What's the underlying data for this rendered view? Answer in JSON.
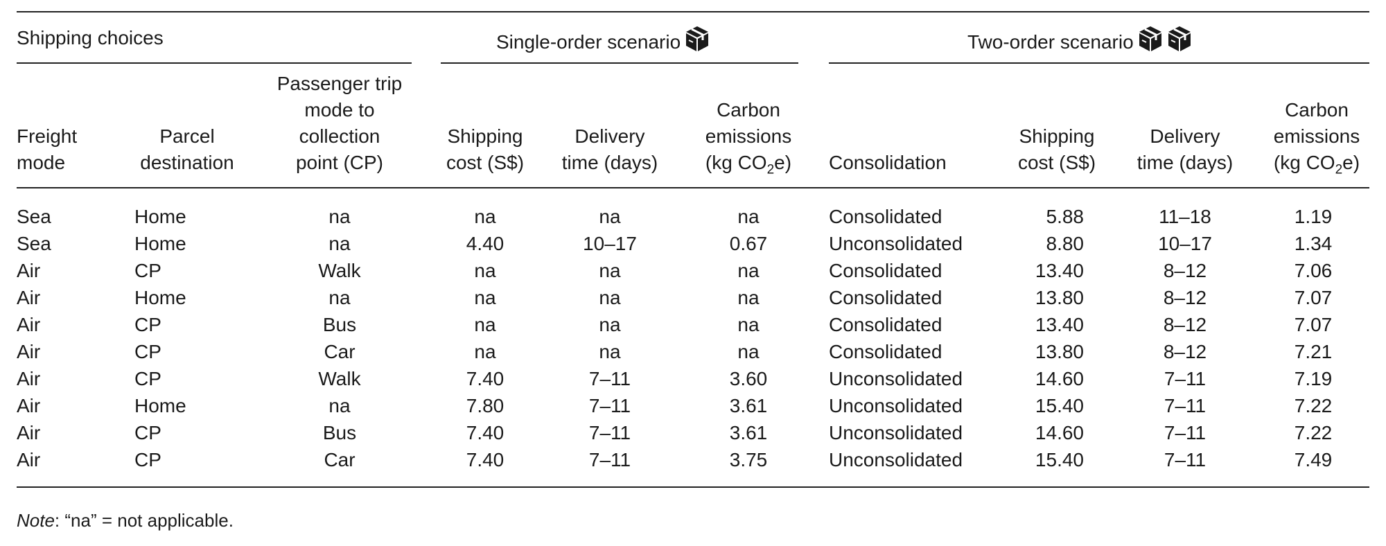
{
  "group_headers": {
    "shipping_choices": "Shipping choices",
    "single_order": "Single-order scenario",
    "two_order": "Two-order scenario"
  },
  "icons": {
    "single_order": [
      "package-icon"
    ],
    "two_order": [
      "package-icon",
      "package-icon"
    ]
  },
  "columns": {
    "freight_mode": [
      "Freight",
      "mode"
    ],
    "parcel_destination": [
      "Parcel",
      "destination"
    ],
    "passenger_trip": [
      "Passenger trip",
      "mode to",
      "collection",
      "point (CP)"
    ],
    "single_shipping_cost": [
      "Shipping",
      "cost (S$)"
    ],
    "single_delivery_time": [
      "Delivery",
      "time (days)"
    ],
    "single_carbon": [
      "Carbon",
      "emissions",
      "(kg CO",
      "2",
      "e)"
    ],
    "consolidation": "Consolidation",
    "two_shipping_cost": [
      "Shipping",
      "cost (S$)"
    ],
    "two_delivery_time": [
      "Delivery",
      "time (days)"
    ],
    "two_carbon": [
      "Carbon",
      "emissions",
      "(kg CO",
      "2",
      "e)"
    ]
  },
  "rows": [
    [
      "Sea",
      "Home",
      "na",
      "na",
      "na",
      "na",
      "Consolidated",
      "5.88",
      "11–18",
      "1.19"
    ],
    [
      "Sea",
      "Home",
      "na",
      "4.40",
      "10–17",
      "0.67",
      "Unconsolidated",
      "8.80",
      "10–17",
      "1.34"
    ],
    [
      "Air",
      "CP",
      "Walk",
      "na",
      "na",
      "na",
      "Consolidated",
      "13.40",
      "8–12",
      "7.06"
    ],
    [
      "Air",
      "Home",
      "na",
      "na",
      "na",
      "na",
      "Consolidated",
      "13.80",
      "8–12",
      "7.07"
    ],
    [
      "Air",
      "CP",
      "Bus",
      "na",
      "na",
      "na",
      "Consolidated",
      "13.40",
      "8–12",
      "7.07"
    ],
    [
      "Air",
      "CP",
      "Car",
      "na",
      "na",
      "na",
      "Consolidated",
      "13.80",
      "8–12",
      "7.21"
    ],
    [
      "Air",
      "CP",
      "Walk",
      "7.40",
      "7–11",
      "3.60",
      "Unconsolidated",
      "14.60",
      "7–11",
      "7.19"
    ],
    [
      "Air",
      "Home",
      "na",
      "7.80",
      "7–11",
      "3.61",
      "Unconsolidated",
      "15.40",
      "7–11",
      "7.22"
    ],
    [
      "Air",
      "CP",
      "Bus",
      "7.40",
      "7–11",
      "3.61",
      "Unconsolidated",
      "14.60",
      "7–11",
      "7.22"
    ],
    [
      "Air",
      "CP",
      "Car",
      "7.40",
      "7–11",
      "3.75",
      "Unconsolidated",
      "15.40",
      "7–11",
      "7.49"
    ]
  ],
  "note": {
    "label": "Note",
    "text": ": “na” = not applicable."
  }
}
